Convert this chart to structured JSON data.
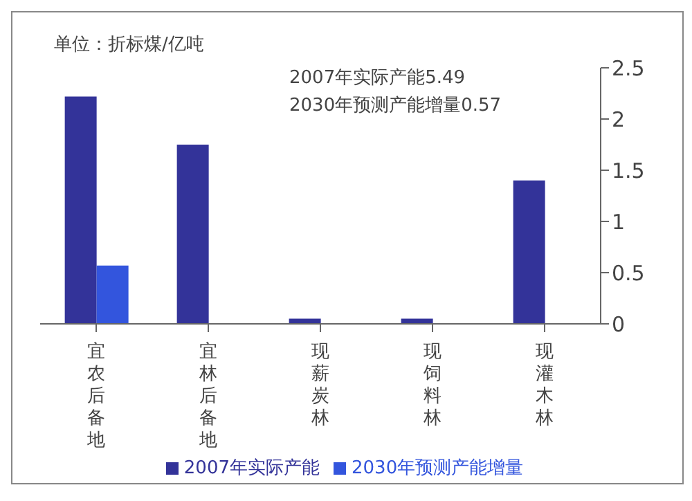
{
  "chart_data": {
    "type": "bar",
    "ylabel": "单位：折标煤/亿吨",
    "annotations": [
      "2007年实际产能5.49",
      "2030年预测产能增量0.57"
    ],
    "categories": [
      "宜农后备地",
      "宜林后备地",
      "现薪炭林",
      "现饲料林",
      "现灌木林"
    ],
    "series": [
      {
        "name": "2007年实际产能",
        "color": "#333399",
        "values": [
          2.22,
          1.75,
          0.05,
          0.05,
          1.4
        ]
      },
      {
        "name": "2030年预测产能增量",
        "color": "#3355dd",
        "values": [
          0.57,
          null,
          null,
          null,
          null
        ]
      }
    ],
    "ylim": [
      0,
      2.5
    ],
    "yticks": [
      0,
      0.5,
      1,
      1.5,
      2,
      2.5
    ],
    "legend": "bottom"
  }
}
